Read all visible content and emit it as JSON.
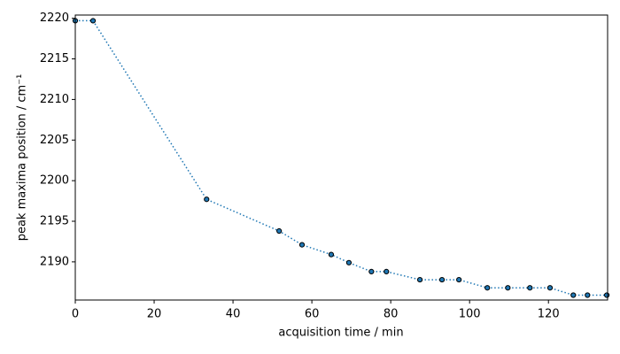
{
  "chart_data": {
    "type": "line",
    "x_label": "acquisition time / min",
    "y_label": "peak maxima position / cm⁻¹",
    "x": [
      0,
      4.5,
      33.3,
      51.7,
      57.5,
      64.9,
      69.4,
      75.1,
      78.9,
      87.4,
      93.0,
      97.3,
      104.5,
      109.7,
      115.3,
      120.4,
      126.3,
      129.9,
      134.8
    ],
    "series": [
      {
        "color": "#1f77b4",
        "values": [
          2219.7,
          2219.7,
          2197.7,
          2193.8,
          2192.1,
          2190.9,
          2189.9,
          2188.8,
          2188.8,
          2187.8,
          2187.8,
          2187.8,
          2186.8,
          2186.8,
          2186.8,
          2186.8,
          2185.9,
          2185.9,
          2185.9
        ]
      }
    ],
    "xlim": [
      0,
      135
    ],
    "ylim": [
      2185.3,
      2220.4
    ],
    "xticks": [
      0,
      20,
      40,
      60,
      80,
      100,
      120
    ],
    "yticks": [
      2190,
      2195,
      2200,
      2205,
      2210,
      2215,
      2220
    ]
  }
}
